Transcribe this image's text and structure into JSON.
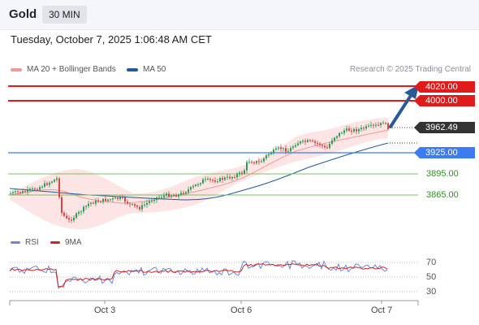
{
  "header": {
    "symbol": "Gold",
    "timeframe": "30 MIN"
  },
  "datetime": "Tuesday, October 7, 2025 1:06:48 AM CET",
  "legend": {
    "ma20_label": "MA 20 + Bollinger Bands",
    "ma50_label": "MA 50",
    "research": "Research © 2025 Trading Central"
  },
  "colors": {
    "ma20": "#f19a9a",
    "ma50": "#23589c",
    "resistance": "#e01b1b",
    "pivot": "#3d7bf2",
    "support": "#7fbf6a",
    "price": "#333333",
    "rsi": "#6f86d6",
    "rsi_ma": "#d32222",
    "arrow": "#285a97"
  },
  "levels": {
    "r2": "4020.00",
    "r1": "4000.00",
    "last": "3962.49",
    "pivot": "3925.00",
    "s1": "3895.00",
    "s2": "3865.00"
  },
  "rsi": {
    "label": "RSI",
    "ma_label": "9MA",
    "levels": [
      "70",
      "50",
      "30"
    ]
  },
  "xaxis": [
    "Oct 3",
    "Oct 6",
    "Oct 7"
  ]
}
